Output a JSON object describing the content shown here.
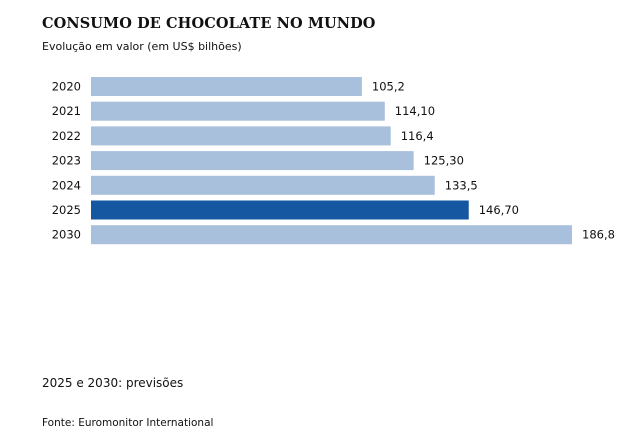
{
  "chart_data": {
    "type": "bar",
    "orientation": "horizontal",
    "title": "CONSUMO DE CHOCOLATE NO MUNDO",
    "subtitle": "Evolução em valor (em US$ bilhões)",
    "categories": [
      "2020",
      "2021",
      "2022",
      "2023",
      "2024",
      "2025",
      "2030"
    ],
    "values": [
      105.2,
      114.1,
      116.4,
      125.3,
      133.5,
      146.7,
      186.8
    ],
    "value_labels": [
      "105,2",
      "114,10",
      "116,4",
      "125,30",
      "133,5",
      "146,70",
      "186,8"
    ],
    "highlight": "2025",
    "colors": {
      "default": "#a8c0dc",
      "highlight": "#1557a0"
    },
    "xlabel": "",
    "ylabel": "",
    "xlim": [
      0,
      186.8
    ],
    "grid": false,
    "legend": "none",
    "note": "2025 e 2030: previsões",
    "source": "Fonte: Euromonitor International"
  }
}
